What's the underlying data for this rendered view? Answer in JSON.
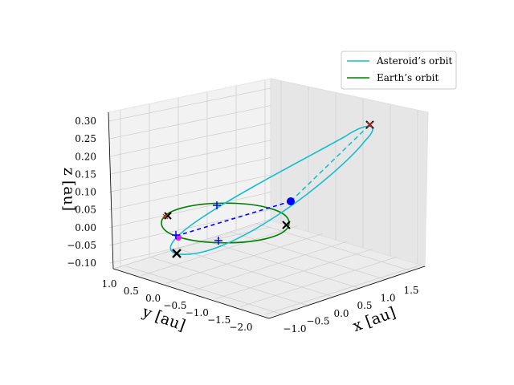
{
  "chart_data": {
    "type": "line3d",
    "xlabel": "x [au]",
    "ylabel": "y [au]",
    "zlabel": "z [au]",
    "xlim": [
      -1.2,
      1.8
    ],
    "ylim": [
      -2.2,
      1.2
    ],
    "zlim": [
      -0.1,
      0.3
    ],
    "x_ticks": [
      "−1.0",
      "−0.5",
      "0.0",
      "0.5",
      "1.0",
      "1.5"
    ],
    "y_ticks": [
      "1.0",
      "0.5",
      "0.0",
      "−0.5",
      "−1.0",
      "−1.5",
      "−2.0"
    ],
    "z_ticks": [
      "0.30",
      "0.25",
      "0.20",
      "0.15",
      "0.10",
      "0.05",
      "0.00",
      "−0.05",
      "−0.10"
    ],
    "grid": true,
    "legend_position": "top-right",
    "series": [
      {
        "name": "Asteroid’s orbit",
        "color": "#17becf",
        "style": "solid"
      },
      {
        "name": "Earth’s orbit",
        "color": "#008000",
        "style": "solid"
      }
    ],
    "asteroid_orbit": {
      "center": [
        0.35,
        -0.6,
        0.1
      ],
      "semi_axis_1": [
        1.0,
        -1.6,
        0.2
      ],
      "semi_axis_2": [
        0.55,
        0.34,
        0.0
      ]
    },
    "earth_orbit": {
      "center": [
        0.0,
        0.0,
        0.0
      ],
      "radius": 1.0
    },
    "sun": [
      0.0,
      0.0,
      0.0
    ],
    "markers": {
      "blue_dot": [
        0.35,
        -0.6,
        0.1
      ],
      "dashed_blue_segment": [
        [
          0.35,
          -0.6,
          0.1
        ],
        [
          -0.5,
          0.87,
          0.0
        ]
      ],
      "dashed_cyan_segment": [
        [
          0.35,
          -0.6,
          0.1
        ],
        [
          1.35,
          -2.2,
          0.3
        ]
      ],
      "black_x": [
        [
          1.35,
          -2.2,
          0.3
        ],
        [
          -0.92,
          0.42,
          0.0
        ],
        [
          0.0,
          -1.0,
          0.0
        ],
        [
          -0.5,
          1.05,
          -0.08
        ]
      ],
      "red_x": [
        [
          1.35,
          -2.2,
          0.3
        ],
        [
          -0.9,
          0.4,
          0.0
        ]
      ],
      "blue_plus": [
        [
          0.71,
          -0.71,
          0.0
        ],
        [
          -0.2,
          -0.6,
          0.0
        ],
        [
          -0.5,
          0.87,
          0.0
        ]
      ]
    }
  }
}
